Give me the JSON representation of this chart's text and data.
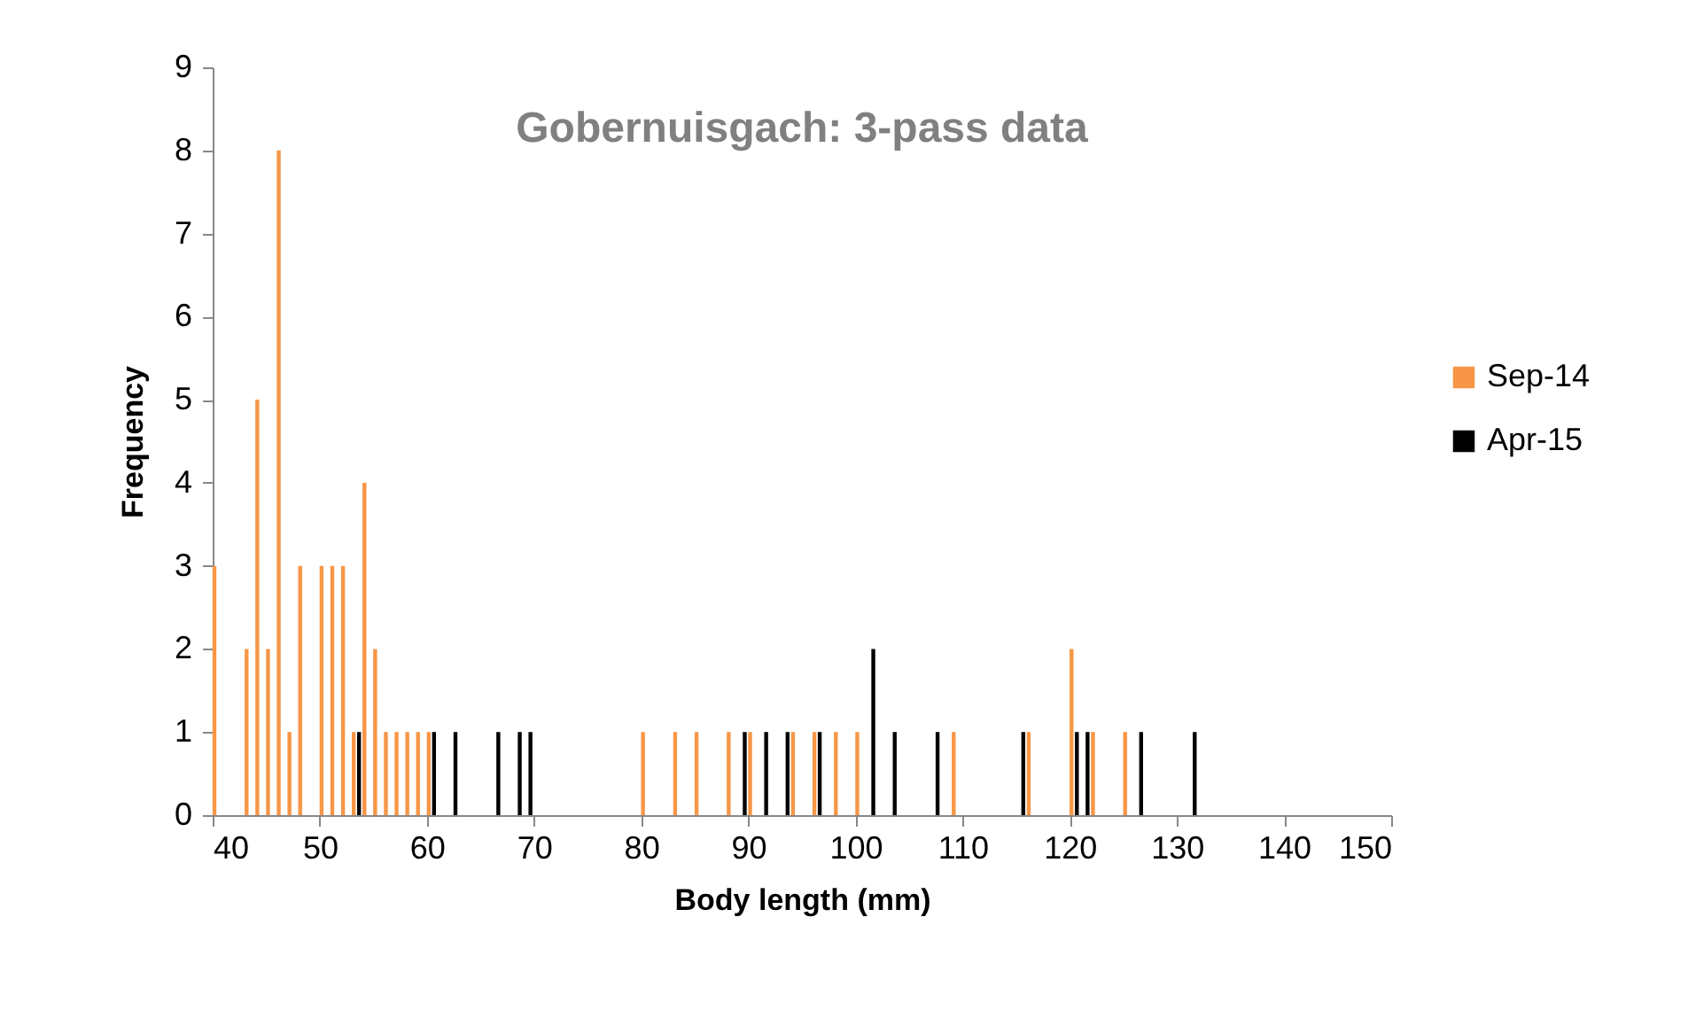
{
  "chart_data": {
    "type": "bar",
    "title": "Gobernuisgach: 3-pass data",
    "xlabel": "Body length (mm)",
    "ylabel": "Frequency",
    "xlim": [
      40,
      150
    ],
    "xticks": [
      40,
      50,
      60,
      70,
      80,
      90,
      100,
      110,
      120,
      130,
      140,
      150
    ],
    "ylim": [
      0,
      9
    ],
    "yticks": [
      0,
      1,
      2,
      3,
      4,
      5,
      6,
      7,
      8,
      9
    ],
    "grid": false,
    "legend": "right",
    "series": [
      {
        "name": "Sep-14",
        "color": "#f79646",
        "x": [
          40,
          43,
          44,
          45,
          46,
          47,
          48,
          50,
          51,
          52,
          53,
          54,
          55,
          56,
          57,
          58,
          59,
          60,
          80,
          83,
          85,
          88,
          90,
          94,
          96,
          98,
          100,
          109,
          116,
          120,
          122,
          125
        ],
        "values": [
          3,
          2,
          5,
          2,
          8,
          1,
          3,
          3,
          3,
          3,
          1,
          4,
          2,
          1,
          1,
          1,
          1,
          1,
          1,
          1,
          1,
          1,
          1,
          1,
          1,
          1,
          1,
          1,
          1,
          2,
          1,
          1
        ]
      },
      {
        "name": "Apr-15",
        "color": "#000000",
        "x": [
          53,
          60,
          62,
          66,
          68,
          69,
          89,
          91,
          93,
          96,
          101,
          103,
          107,
          115,
          120,
          121,
          126,
          131
        ],
        "values": [
          1,
          1,
          1,
          1,
          1,
          1,
          1,
          1,
          1,
          1,
          2,
          1,
          1,
          1,
          1,
          1,
          1,
          1
        ]
      }
    ]
  }
}
